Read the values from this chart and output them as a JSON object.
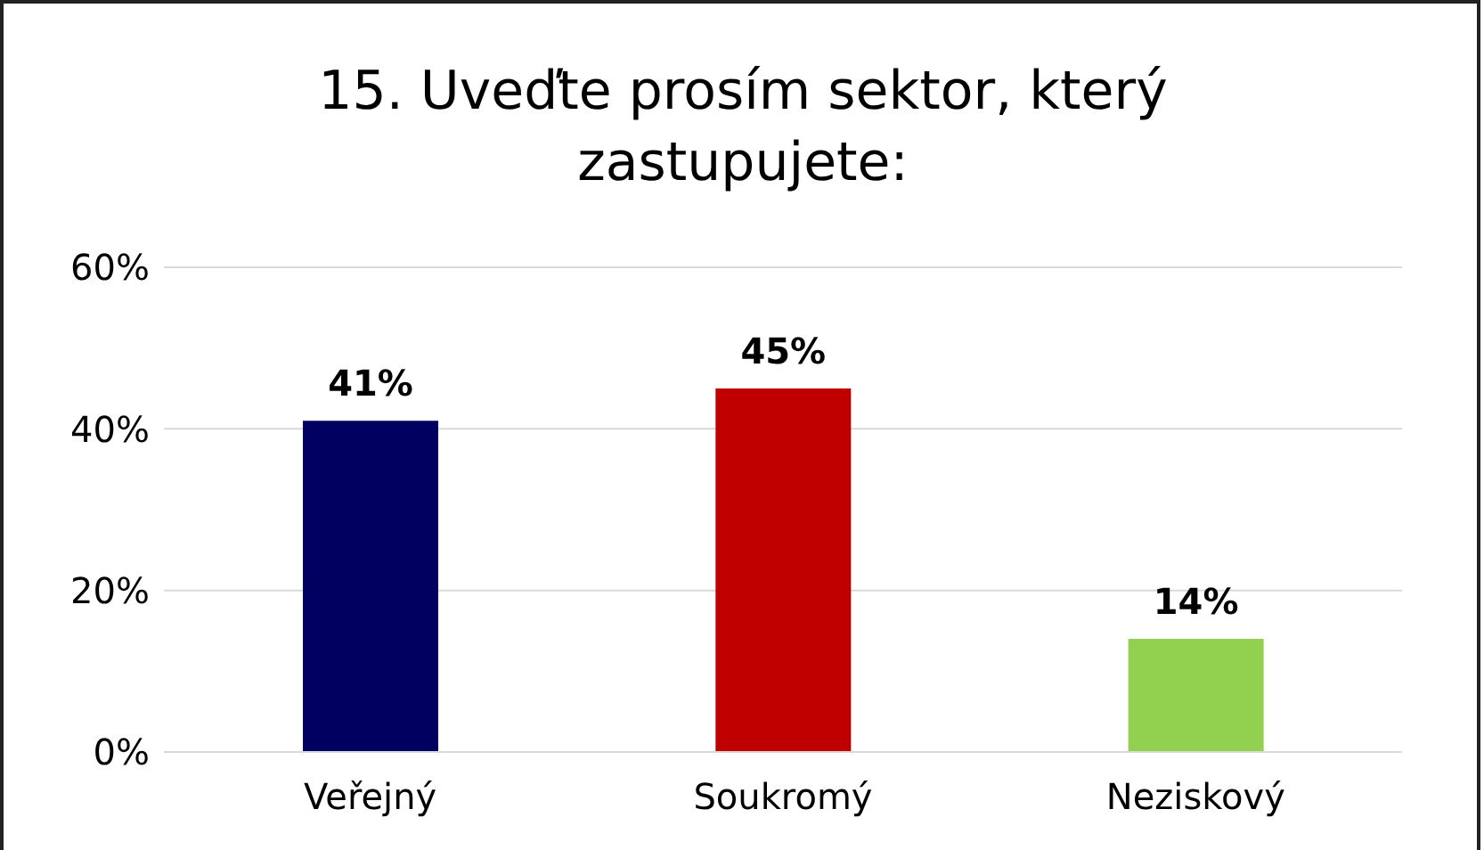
{
  "chart_data": {
    "type": "bar",
    "title": "15. Uveďte prosím sektor, který zastupujete:",
    "categories": [
      "Veřejný",
      "Soukromý",
      "Neziskový"
    ],
    "values": [
      41,
      45,
      14
    ],
    "colors": [
      "#000060",
      "#c00000",
      "#92d050"
    ],
    "value_labels": [
      "41%",
      "45%",
      "14%"
    ],
    "ylim": [
      0,
      60
    ],
    "yticks": [
      {
        "value": 0,
        "label": "0%"
      },
      {
        "value": 20,
        "label": "20%"
      },
      {
        "value": 40,
        "label": "40%"
      },
      {
        "value": 60,
        "label": "60%"
      }
    ],
    "grid": "y"
  }
}
